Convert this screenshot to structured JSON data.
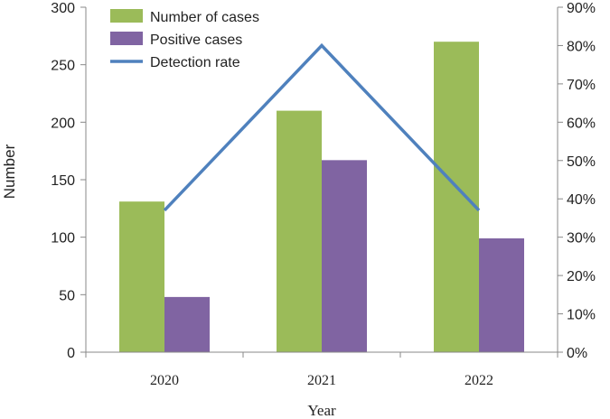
{
  "chart_data": {
    "type": "bar",
    "categories": [
      "2020",
      "2021",
      "2022"
    ],
    "series": [
      {
        "name": "Number of cases",
        "type": "bar",
        "axis": "left",
        "values": [
          131,
          210,
          270
        ],
        "color": "#9bbb59"
      },
      {
        "name": "Positive cases",
        "type": "bar",
        "axis": "left",
        "values": [
          48,
          167,
          99
        ],
        "color": "#8064a2"
      },
      {
        "name": "Detection rate",
        "type": "line",
        "axis": "right",
        "values": [
          0.37,
          0.8,
          0.37
        ],
        "color": "#4f81bd"
      }
    ],
    "xlabel": "Year",
    "ylabel": "Number",
    "ylim": [
      0,
      300
    ],
    "yticks": [
      "0",
      "50",
      "100",
      "150",
      "200",
      "250",
      "300"
    ],
    "y2lim": [
      0,
      0.9
    ],
    "y2ticks": [
      "0%",
      "10%",
      "20%",
      "30%",
      "40%",
      "50%",
      "60%",
      "70%",
      "80%",
      "90%"
    ],
    "legend_position": "top-left",
    "grid": false
  }
}
